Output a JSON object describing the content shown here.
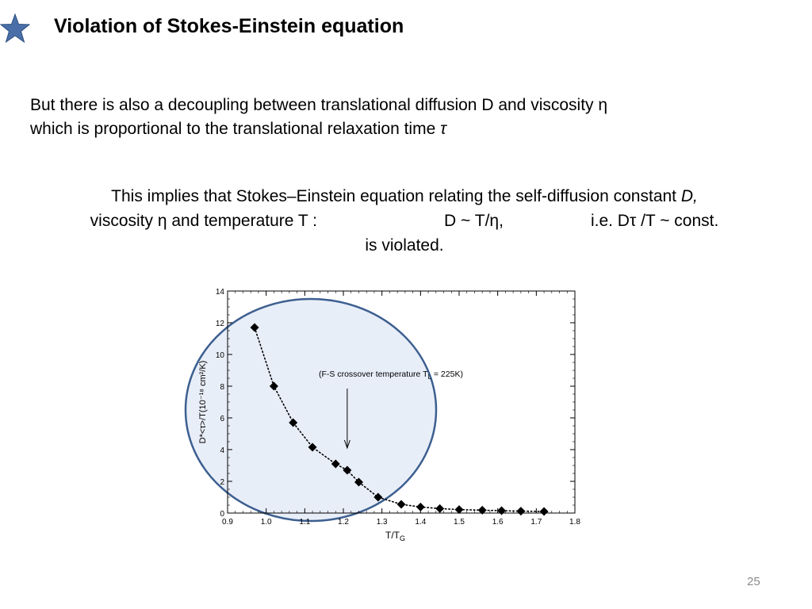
{
  "slide": {
    "title": "Violation of Stokes-Einstein equation",
    "page_number": "25",
    "icon": "star-icon",
    "icon_color": "#4a6fa8"
  },
  "para1": {
    "line1": "But there is also a decoupling between translational diffusion D and viscosity η",
    "line2_text": "which is proportional to the translational relaxation time ",
    "line2_symbol": "τ"
  },
  "para2": {
    "line1_text": "This implies that Stokes–Einstein equation relating the self-diffusion constant ",
    "line1_symbol": "D,",
    "line2_part1": "viscosity η and temperature T :",
    "line2_part2": "D ~ T/η,",
    "line2_part3": "i.e. Dτ /T ~ const.",
    "line3": "is violated."
  },
  "chart_data": {
    "type": "scatter",
    "x": [
      0.97,
      1.02,
      1.07,
      1.12,
      1.18,
      1.21,
      1.24,
      1.29,
      1.35,
      1.4,
      1.45,
      1.5,
      1.56,
      1.61,
      1.66,
      1.72
    ],
    "y": [
      11.7,
      8.0,
      5.7,
      4.15,
      3.1,
      2.7,
      1.95,
      1.0,
      0.55,
      0.38,
      0.28,
      0.22,
      0.18,
      0.15,
      0.12,
      0.1
    ],
    "xlim": [
      0.9,
      1.8
    ],
    "ylim": [
      0,
      14
    ],
    "xticks": [
      0.9,
      1.0,
      1.1,
      1.2,
      1.3,
      1.4,
      1.5,
      1.6,
      1.7,
      1.8
    ],
    "yticks": [
      0,
      2,
      4,
      6,
      8,
      10,
      12,
      14
    ],
    "xlabel": "T/T",
    "xlabel_sub": "G",
    "ylabel": "D*<τ>/T(10⁻¹⁸ cm²/K)",
    "annotation": "(F-S crossover temperature T",
    "annotation_sub": "L",
    "annotation_tail": " = 225K)",
    "annotation_x": 1.21,
    "highlight_color": "#e8eef8",
    "highlight_stroke": "#3d5f90"
  }
}
